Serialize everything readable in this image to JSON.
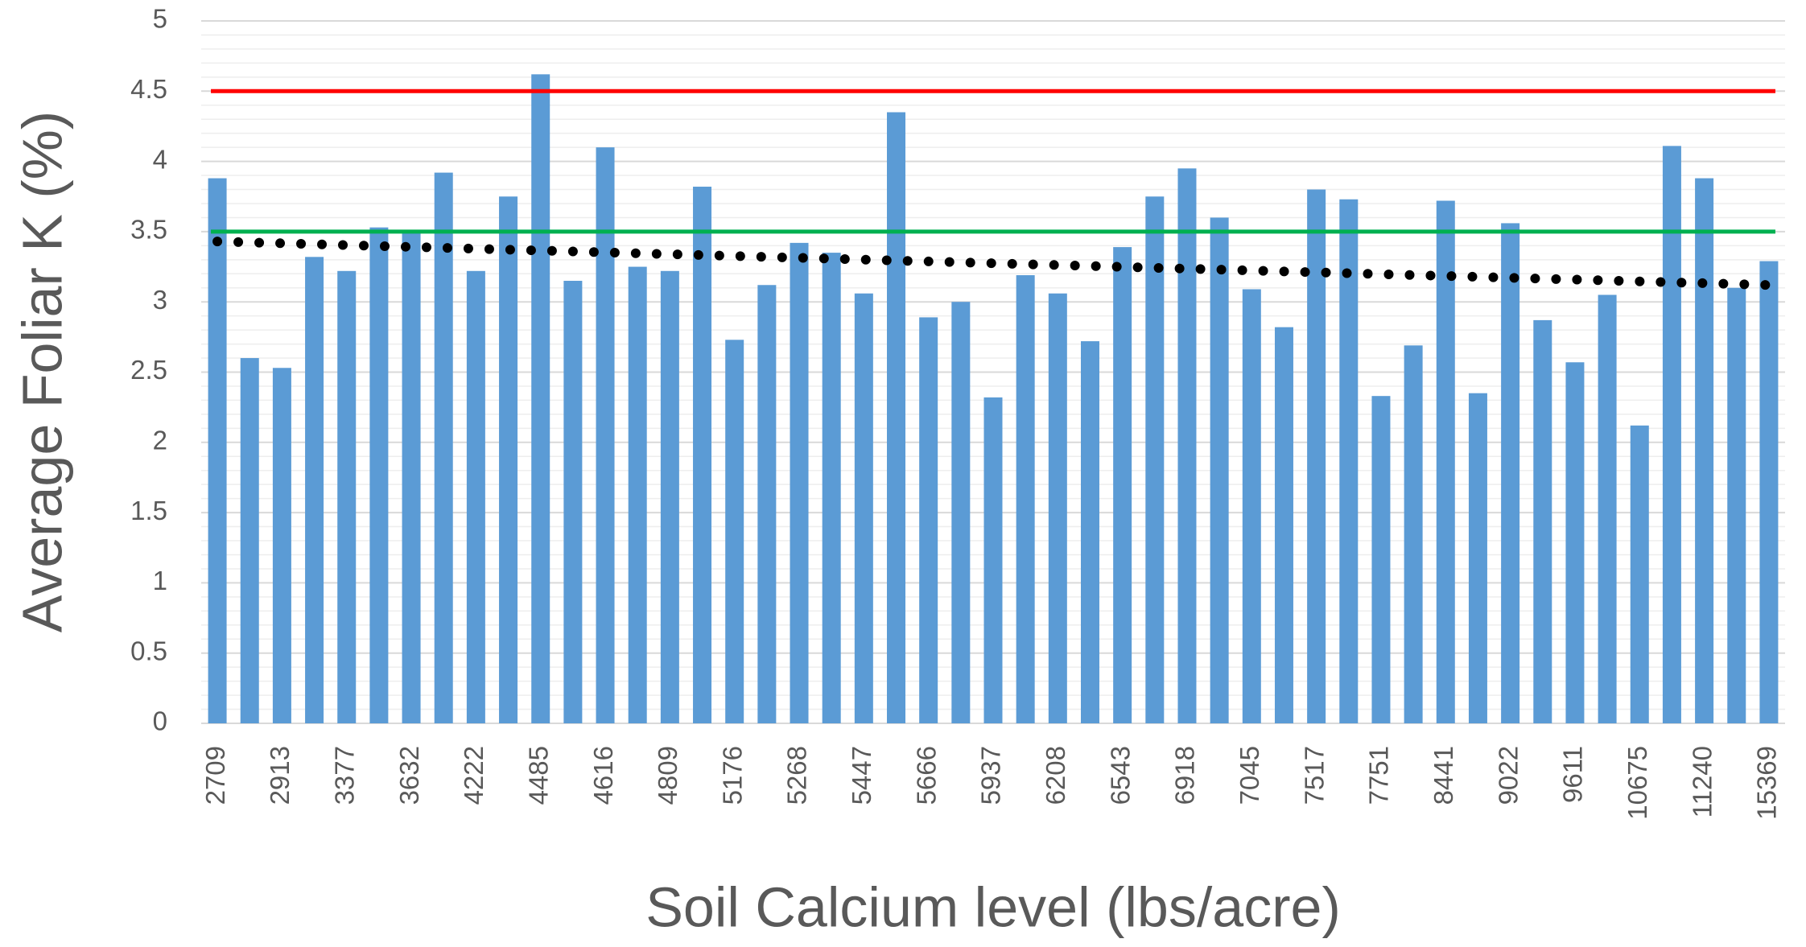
{
  "chart_data": {
    "type": "bar",
    "x_label": "Soil Calcium level (lbs/acre)",
    "y_label": "Average Foliar K (%)",
    "categories": [
      "2709",
      null,
      "2913",
      null,
      "3377",
      null,
      "3632",
      null,
      "4222",
      null,
      "4485",
      null,
      "4616",
      null,
      "4809",
      null,
      "5176",
      null,
      "5268",
      null,
      "5447",
      null,
      "5666",
      null,
      "5937",
      null,
      "6208",
      null,
      "6543",
      null,
      "6918",
      null,
      "7045",
      null,
      "7517",
      null,
      "7751",
      null,
      "8441",
      null,
      "9022",
      null,
      "9611",
      null,
      "10675",
      null,
      "11240",
      null,
      "15369"
    ],
    "values": [
      3.88,
      2.6,
      2.53,
      3.32,
      3.22,
      3.53,
      3.5,
      3.92,
      3.22,
      3.75,
      4.62,
      3.15,
      4.1,
      3.25,
      3.22,
      3.82,
      2.73,
      3.12,
      3.42,
      3.35,
      3.06,
      4.35,
      2.89,
      3.0,
      2.32,
      3.19,
      3.06,
      2.72,
      3.39,
      3.75,
      3.95,
      3.6,
      3.09,
      2.82,
      3.8,
      3.73,
      2.33,
      2.69,
      3.72,
      2.35,
      3.56,
      2.87,
      2.57,
      3.05,
      2.12,
      4.11,
      3.88,
      3.1,
      3.29
    ],
    "color": "#5b9bd5",
    "ylim": [
      0,
      5
    ],
    "yticks": [
      0,
      0.5,
      1,
      1.5,
      2,
      2.5,
      3,
      3.5,
      4,
      4.5,
      5
    ],
    "grid": true,
    "minor_grid": 0.1,
    "reference_lines": [
      {
        "value": 4.5,
        "color": "#ff0000"
      },
      {
        "value": 3.5,
        "color": "#00b050"
      }
    ],
    "trendline": [
      3.43,
      3.12
    ],
    "trendline_color": "#000000"
  }
}
